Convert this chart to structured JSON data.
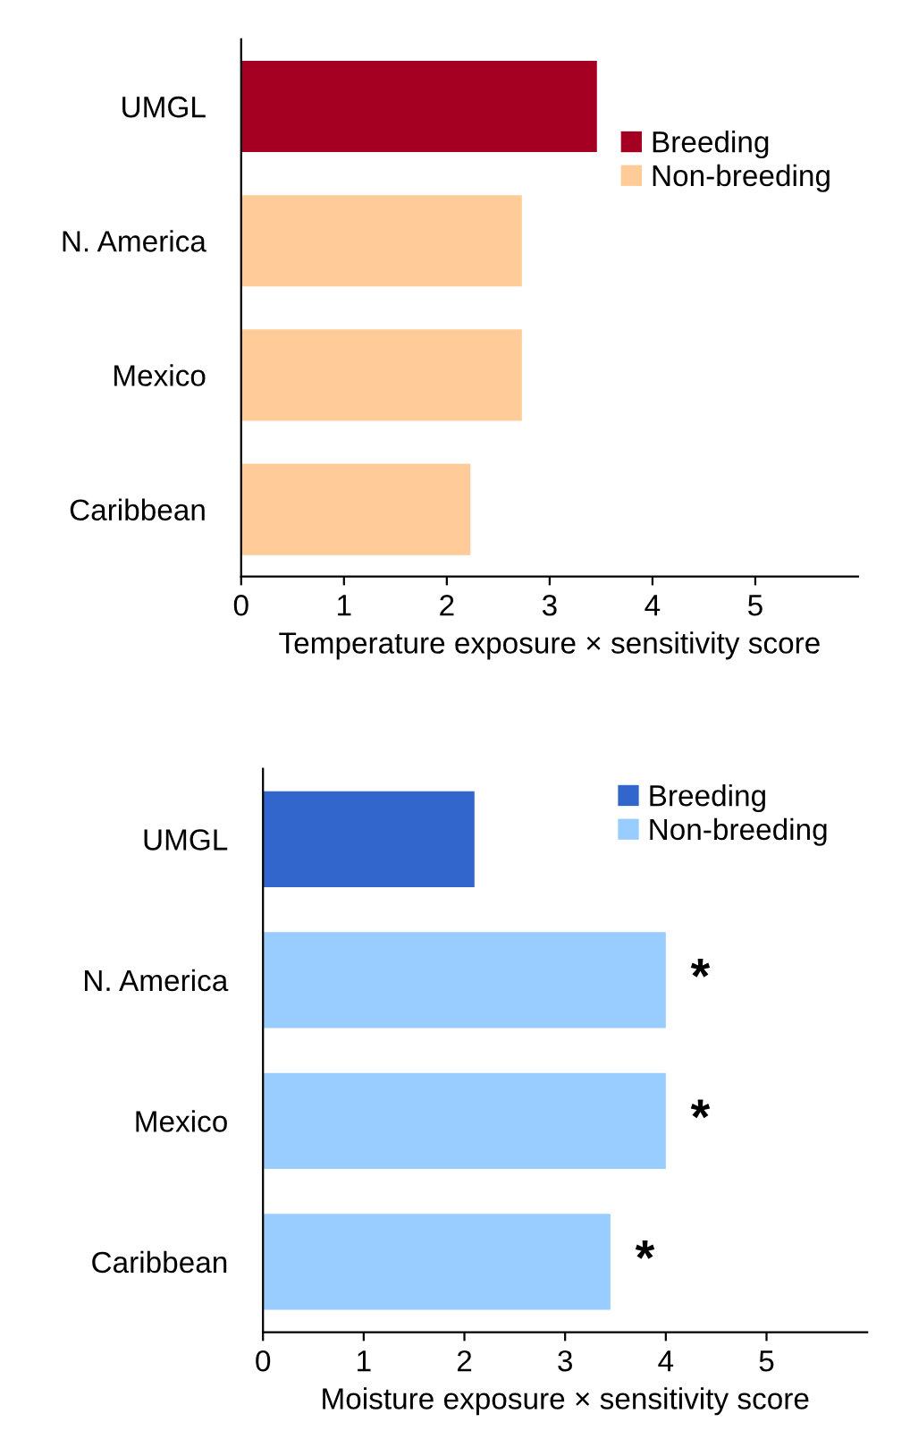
{
  "chart_data": [
    {
      "type": "bar",
      "orientation": "horizontal",
      "xlabel": "Temperature exposure × sensitivity score",
      "categories": [
        "UMGL",
        "N. America",
        "Mexico",
        "Caribbean"
      ],
      "series": [
        {
          "name": "Breeding",
          "color": "#a50021",
          "values": [
            3.46,
            null,
            null,
            null
          ]
        },
        {
          "name": "Non-breeding",
          "color": "#ffcc99",
          "values": [
            null,
            2.73,
            2.73,
            2.23
          ]
        }
      ],
      "xlim": [
        0,
        6
      ],
      "xticks": [
        0,
        1,
        2,
        3,
        4,
        5
      ],
      "grid": false,
      "legend": "top right"
    },
    {
      "type": "bar",
      "orientation": "horizontal",
      "xlabel": "Moisture exposure × sensitivity score",
      "categories": [
        "UMGL",
        "N. America",
        "Mexico",
        "Caribbean"
      ],
      "series": [
        {
          "name": "Breeding",
          "color": "#3366cc",
          "values": [
            2.1,
            null,
            null,
            null
          ]
        },
        {
          "name": "Non-breeding",
          "color": "#99ccff",
          "values": [
            null,
            4.0,
            4.0,
            3.45
          ],
          "value_labels": [
            null,
            "*",
            "*",
            "*"
          ]
        }
      ],
      "xlim": [
        0,
        6
      ],
      "xticks": [
        0,
        1,
        2,
        3,
        4,
        5
      ],
      "grid": false,
      "legend": "top right"
    }
  ]
}
